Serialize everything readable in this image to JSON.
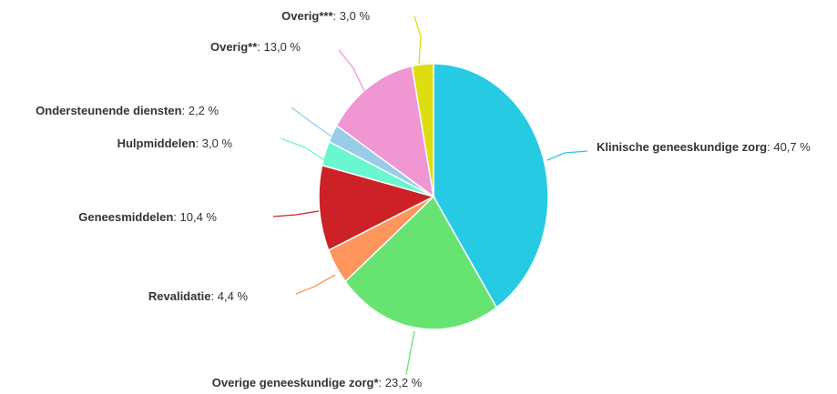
{
  "chart_data": {
    "type": "pie",
    "title": "",
    "value_suffix": " %",
    "slices": [
      {
        "name": "Klinische geneeskundige zorg",
        "value": 40.7,
        "value_label": "40,7",
        "color": "#26cbe3"
      },
      {
        "name": "Overige geneeskundige zorg*",
        "value": 23.2,
        "value_label": "23,2",
        "color": "#67e372"
      },
      {
        "name": "Revalidatie",
        "value": 4.4,
        "value_label": "4,4",
        "color": "#fd955c"
      },
      {
        "name": "Geneesmiddelen",
        "value": 10.4,
        "value_label": "10,4",
        "color": "#cc2227"
      },
      {
        "name": "Hulpmiddelen",
        "value": 3.0,
        "value_label": "3,0",
        "color": "#6af7cf"
      },
      {
        "name": "Ondersteunende diensten",
        "value": 2.2,
        "value_label": "2,2",
        "color": "#98cdea"
      },
      {
        "name": "Overig**",
        "value": 13.0,
        "value_label": "13,0",
        "color": "#ef96d3"
      },
      {
        "name": "Overig***",
        "value": 3.0,
        "value_label": "3,0",
        "color": "#dedd0f"
      }
    ]
  }
}
